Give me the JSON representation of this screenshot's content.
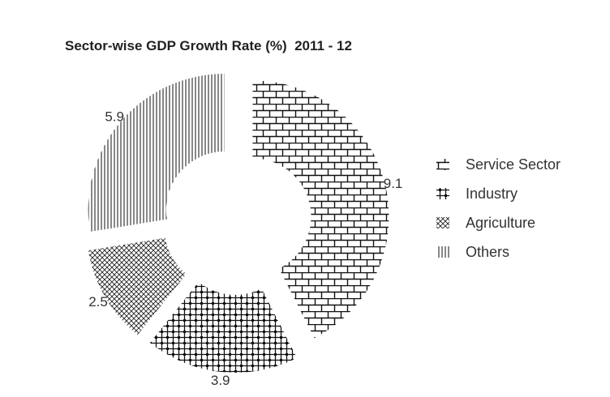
{
  "chart_data": {
    "type": "pie",
    "title": "Sector-wise GDP Growth Rate (%)  2011 - 12",
    "categories": [
      "Service Sector",
      "Industry",
      "Agriculture",
      "Others"
    ],
    "values": [
      9.1,
      3.9,
      2.5,
      5.9
    ],
    "data_labels": [
      "9.1",
      "3.9",
      "2.5",
      "5.9"
    ],
    "style": "donut, exploded slices",
    "legend": "right",
    "colors": [
      "#000000",
      "#000000",
      "#000000",
      "#000000"
    ]
  }
}
